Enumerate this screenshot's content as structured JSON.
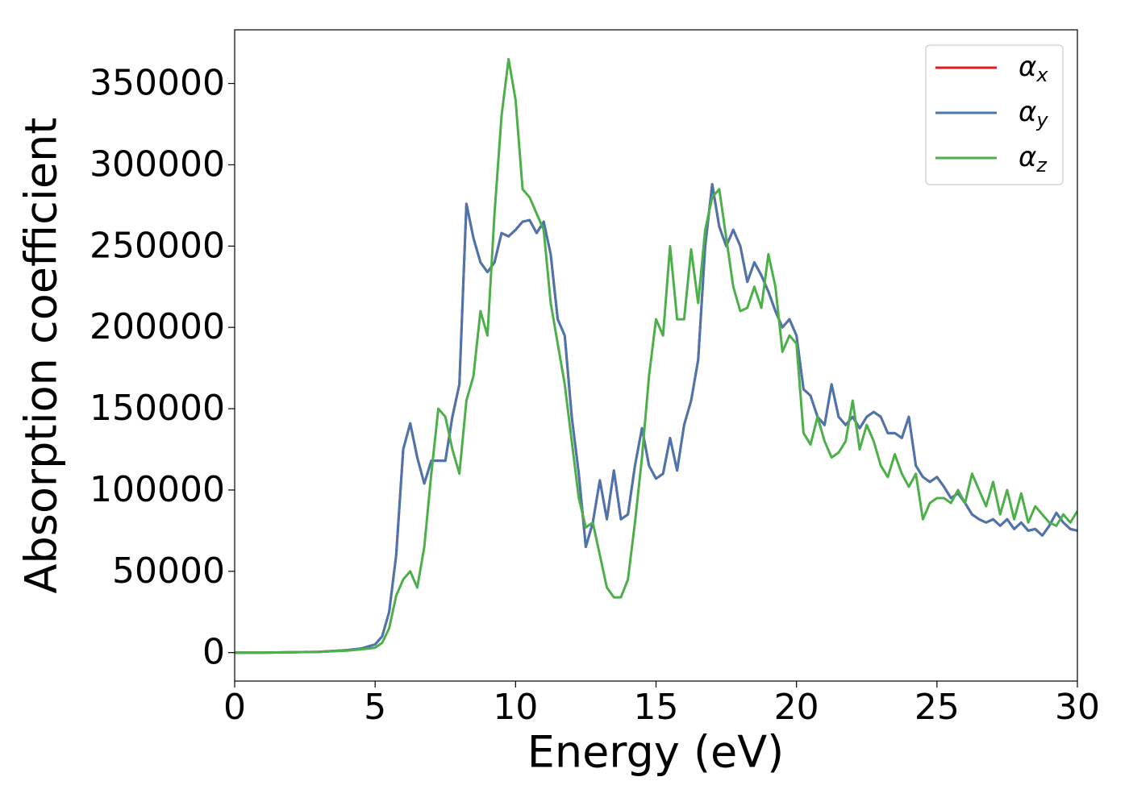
{
  "chart_data": {
    "type": "line",
    "xlabel": "Energy (eV)",
    "ylabel": "Absorption coefficient",
    "xlim": [
      0,
      30
    ],
    "ylim": [
      -17500,
      383000
    ],
    "xticks": [
      0,
      5,
      10,
      15,
      20,
      25,
      30
    ],
    "yticks": [
      0,
      50000,
      100000,
      150000,
      200000,
      250000,
      300000,
      350000
    ],
    "legend": "upper right",
    "grid": false,
    "x": [
      0,
      1,
      2,
      3,
      4,
      4.5,
      5,
      5.25,
      5.5,
      5.75,
      6,
      6.25,
      6.5,
      6.75,
      7,
      7.25,
      7.5,
      7.75,
      8,
      8.25,
      8.5,
      8.75,
      9,
      9.25,
      9.5,
      9.75,
      10,
      10.25,
      10.5,
      10.75,
      11,
      11.25,
      11.5,
      11.75,
      12,
      12.25,
      12.5,
      12.75,
      13,
      13.25,
      13.5,
      13.75,
      14,
      14.25,
      14.5,
      14.75,
      15,
      15.25,
      15.5,
      15.75,
      16,
      16.25,
      16.5,
      16.75,
      17,
      17.25,
      17.5,
      17.75,
      18,
      18.25,
      18.5,
      18.75,
      19,
      19.25,
      19.5,
      19.75,
      20,
      20.25,
      20.5,
      20.75,
      21,
      21.25,
      21.5,
      21.75,
      22,
      22.25,
      22.5,
      22.75,
      23,
      23.25,
      23.5,
      23.75,
      24,
      24.25,
      24.5,
      24.75,
      25,
      25.25,
      25.5,
      25.75,
      26,
      26.25,
      26.5,
      26.75,
      27,
      27.25,
      27.5,
      27.75,
      28,
      28.25,
      28.5,
      28.75,
      29,
      29.25,
      29.5,
      29.75,
      30
    ],
    "series": [
      {
        "name": "αx",
        "color": "#e41a1c",
        "values": [
          0,
          0,
          200,
          500,
          1500,
          2500,
          5000,
          10000,
          25000,
          60000,
          125000,
          141000,
          120000,
          104000,
          118000,
          118000,
          118000,
          145000,
          165000,
          276000,
          255000,
          240000,
          234000,
          240000,
          258000,
          256000,
          260000,
          265000,
          266000,
          258000,
          265000,
          245000,
          205000,
          195000,
          145000,
          110000,
          65000,
          80000,
          106000,
          82000,
          112000,
          82000,
          85000,
          115000,
          138000,
          115000,
          107000,
          110000,
          132000,
          112000,
          140000,
          155000,
          180000,
          250000,
          288000,
          262000,
          250000,
          260000,
          250000,
          228000,
          240000,
          232000,
          222000,
          210000,
          200000,
          205000,
          195000,
          162000,
          158000,
          145000,
          140000,
          165000,
          145000,
          140000,
          145000,
          138000,
          145000,
          148000,
          145000,
          135000,
          135000,
          132000,
          145000,
          115000,
          108000,
          105000,
          108000,
          102000,
          95000,
          98000,
          92000,
          85000,
          82000,
          80000,
          82000,
          78000,
          82000,
          76000,
          80000,
          75000,
          76000,
          72000,
          78000,
          86000,
          80000,
          76000,
          75000
        ]
      },
      {
        "name": "αy",
        "color": "#4a76ad",
        "values": [
          0,
          0,
          200,
          500,
          1500,
          2500,
          5000,
          10000,
          25000,
          60000,
          125000,
          141000,
          120000,
          104000,
          118000,
          118000,
          118000,
          145000,
          165000,
          276000,
          255000,
          240000,
          234000,
          240000,
          258000,
          256000,
          260000,
          265000,
          266000,
          258000,
          265000,
          245000,
          205000,
          195000,
          145000,
          110000,
          65000,
          80000,
          106000,
          82000,
          112000,
          82000,
          85000,
          115000,
          138000,
          115000,
          107000,
          110000,
          132000,
          112000,
          140000,
          155000,
          180000,
          250000,
          288000,
          262000,
          250000,
          260000,
          250000,
          228000,
          240000,
          232000,
          222000,
          210000,
          200000,
          205000,
          195000,
          162000,
          158000,
          145000,
          140000,
          165000,
          145000,
          140000,
          145000,
          138000,
          145000,
          148000,
          145000,
          135000,
          135000,
          132000,
          145000,
          115000,
          108000,
          105000,
          108000,
          102000,
          95000,
          98000,
          92000,
          85000,
          82000,
          80000,
          82000,
          78000,
          82000,
          76000,
          80000,
          75000,
          76000,
          72000,
          78000,
          86000,
          80000,
          76000,
          75000
        ]
      },
      {
        "name": "αz",
        "color": "#4daf4a",
        "values": [
          0,
          0,
          200,
          500,
          1200,
          2000,
          3000,
          6000,
          15000,
          35000,
          45000,
          50000,
          40000,
          65000,
          110000,
          150000,
          145000,
          125000,
          110000,
          155000,
          170000,
          210000,
          195000,
          270000,
          330000,
          365000,
          340000,
          285000,
          280000,
          270000,
          260000,
          215000,
          190000,
          165000,
          130000,
          95000,
          77000,
          80000,
          60000,
          40000,
          34000,
          34000,
          45000,
          80000,
          120000,
          170000,
          205000,
          195000,
          250000,
          205000,
          205000,
          248000,
          215000,
          260000,
          280000,
          285000,
          255000,
          225000,
          210000,
          212000,
          225000,
          212000,
          245000,
          225000,
          185000,
          195000,
          190000,
          135000,
          128000,
          145000,
          130000,
          120000,
          123000,
          130000,
          155000,
          125000,
          140000,
          130000,
          115000,
          108000,
          122000,
          110000,
          102000,
          110000,
          82000,
          92000,
          95000,
          95000,
          92000,
          100000,
          92000,
          110000,
          100000,
          90000,
          105000,
          85000,
          100000,
          82000,
          98000,
          80000,
          90000,
          85000,
          80000,
          78000,
          85000,
          80000,
          87000
        ]
      }
    ]
  }
}
